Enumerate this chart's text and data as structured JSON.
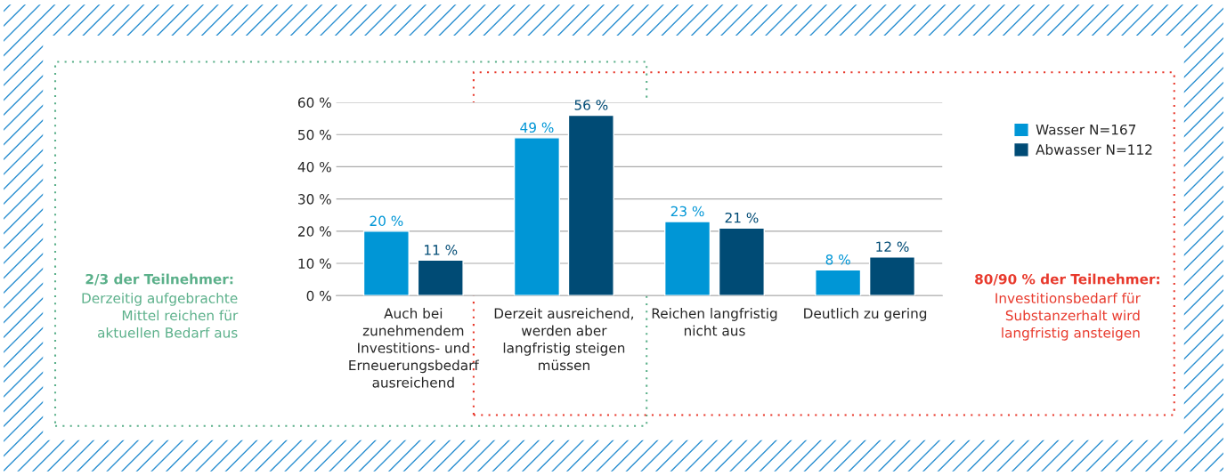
{
  "chart_data": {
    "type": "bar",
    "categories": [
      "Auch bei\nzunehmendem\nInvestitions- und\nErneuerungsbedarf\nausreichend",
      "Derzeit ausreichend,\nwerden aber\nlangfristig steigen\nmüssen",
      "Reichen langfristig\nnicht aus",
      "Deutlich zu gering"
    ],
    "series": [
      {
        "name": "Wasser N=167",
        "color": "#0096d6",
        "values": [
          20,
          49,
          23,
          8
        ],
        "value_labels": [
          "20 %",
          "49 %",
          "23 %",
          "8 %"
        ]
      },
      {
        "name": "Abwasser N=112",
        "color": "#004b75",
        "values": [
          11,
          56,
          21,
          12
        ],
        "value_labels": [
          "11 %",
          "56 %",
          "21 %",
          "12 %"
        ]
      }
    ],
    "ylim": [
      0,
      60
    ],
    "yticks": [
      {
        "value": 0,
        "label": "0 %"
      },
      {
        "value": 10,
        "label": "10 %"
      },
      {
        "value": 20,
        "label": "20 %"
      },
      {
        "value": 30,
        "label": "30 %"
      },
      {
        "value": 40,
        "label": "40 %"
      },
      {
        "value": 50,
        "label": "50 %"
      },
      {
        "value": 60,
        "label": "60 %"
      }
    ],
    "grid": "y",
    "legend": "top right",
    "annotations": [
      "2/3 der Teilnehmer:",
      "Derzeitig aufgebrachte\nMittel reichen für\naktuellen Bedarf aus",
      "80/90 % der Teilnehmer:",
      "Investitionsbedarf für\nSubstanzerhalt wird\nlangfristig ansteigen"
    ]
  }
}
